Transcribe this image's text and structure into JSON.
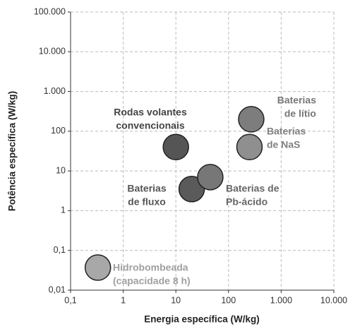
{
  "chart_data": {
    "type": "scatter",
    "x_label": "Energia específica (W/kg)",
    "y_label": "Potência específica (W/kg)",
    "xscale": "log",
    "yscale": "log",
    "grid": true,
    "xlim": [
      0.1,
      10000
    ],
    "xticks": [
      {
        "value": 0.1,
        "label": "0,1"
      },
      1,
      10,
      100,
      {
        "value": 1000,
        "label": "1.000"
      },
      {
        "value": 10000,
        "label": "10.000"
      }
    ],
    "ylim": [
      0.01,
      100000
    ],
    "yticks": [
      {
        "value": 0.01,
        "label": "0,01"
      },
      {
        "value": 0.1,
        "label": "0,1"
      },
      1,
      10,
      100,
      {
        "value": 1000,
        "label": "1.000"
      },
      {
        "value": 10000,
        "label": "10.000"
      },
      {
        "value": 100000,
        "label": "100.000"
      }
    ],
    "series": [
      {
        "label": [
          "Rodas volantes",
          "convencionais"
        ],
        "x": 10,
        "y": 40,
        "color": "#555555",
        "label_color": "#444444"
      },
      {
        "label": [
          "Baterias",
          "de fluxo"
        ],
        "x": 20,
        "y": 3.5,
        "color": "#5a5a5a",
        "label_color": "#555555"
      },
      {
        "label": [
          "Baterias de",
          "Pb-ácido"
        ],
        "x": 45,
        "y": 7,
        "color": "#777777",
        "label_color": "#666666"
      },
      {
        "label": [
          "Baterias",
          "de lítio"
        ],
        "x": 270,
        "y": 200,
        "color": "#7d7d7d",
        "label_color": "#777777"
      },
      {
        "label": [
          "Baterias",
          "de NaS"
        ],
        "x": 250,
        "y": 40,
        "color": "#8f8f8f",
        "label_color": "#808080"
      },
      {
        "label": [
          "Hidrobombeada",
          "(capacidade 8 h)"
        ],
        "x": 0.33,
        "y": 0.037,
        "color": "#a8a8a8",
        "label_color": "#a0a0a0"
      }
    ]
  }
}
